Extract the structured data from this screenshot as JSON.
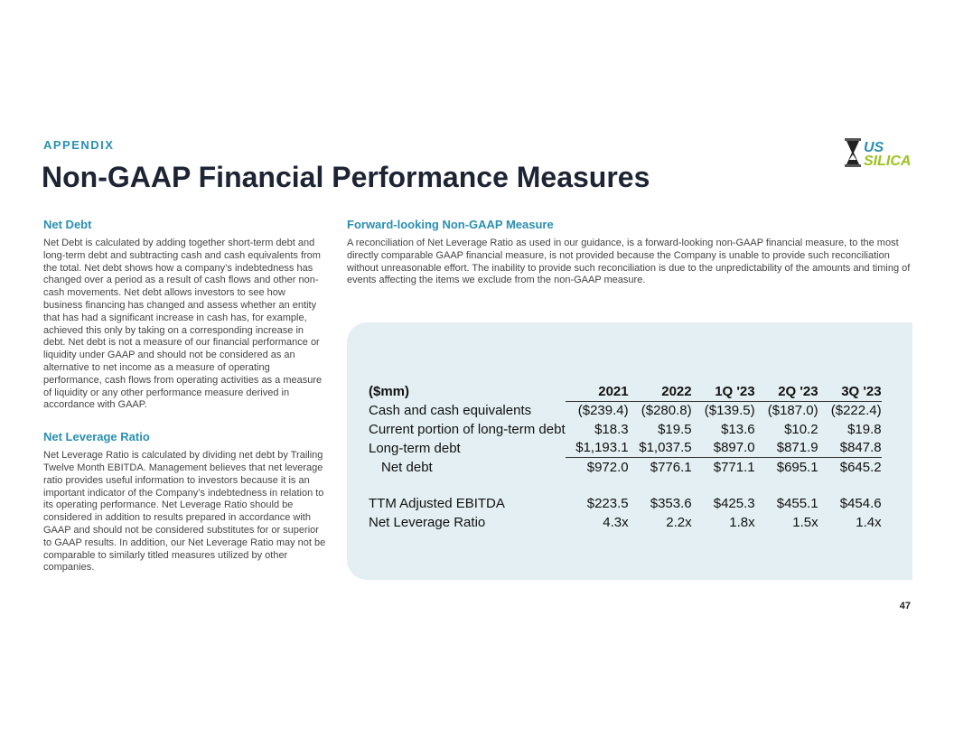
{
  "eyebrow": "APPENDIX",
  "title": "Non-GAAP Financial Performance Measures",
  "logo": {
    "text_line1": "US",
    "text_line2": "SILICA",
    "colors": {
      "blue": "#2a8fb2",
      "green": "#9cc31c"
    }
  },
  "net_debt": {
    "heading": "Net Debt",
    "body": "Net Debt is calculated by adding together short-term debt and long-term debt and subtracting cash and cash equivalents from the total. Net debt shows how a company’s indebtedness has changed over a period as a result of cash flows and other non-cash movements. Net debt allows investors to see how business financing has changed and assess whether an entity that has had a significant increase in cash has, for example, achieved this only by taking on a corresponding increase in debt.  Net debt is not a measure of our financial performance or liquidity under GAAP and should not be considered as an alternative to net income as a measure of operating performance, cash flows from operating activities as a measure of liquidity or any other performance measure derived in accordance with GAAP."
  },
  "net_leverage": {
    "heading": "Net Leverage Ratio",
    "body": "Net Leverage Ratio is calculated by dividing net debt by Trailing Twelve Month EBITDA. Management believes that net leverage ratio provides useful information to investors because it is an important indicator of the Company’s indebtedness in relation to its operating performance. Net Leverage Ratio should be considered in addition to results prepared in accordance with GAAP and should not be considered substitutes for or superior to GAAP results. In addition, our Net Leverage Ratio may not be comparable to similarly titled measures utilized by other companies."
  },
  "forward": {
    "heading": "Forward-looking Non-GAAP Measure",
    "body": "A reconciliation of Net Leverage Ratio as used in our guidance, is a forward-looking non-GAAP financial measure, to the most directly comparable GAAP financial measure, is not provided because the Company is unable to provide such reconciliation without unreasonable effort. The inability to provide such reconciliation is due to the unpredictability of the amounts and timing of events affecting the items we exclude from the non-GAAP measure."
  },
  "table": {
    "unit": "($mm)",
    "columns": [
      "2021",
      "2022",
      "1Q '23",
      "2Q '23",
      "3Q '23"
    ],
    "rows": [
      {
        "label": "Cash and cash equivalents",
        "values": [
          "($239.4)",
          "($280.8)",
          "($139.5)",
          "($187.0)",
          "($222.4)"
        ]
      },
      {
        "label": "Current portion of long-term debt",
        "values": [
          "$18.3",
          "$19.5",
          "$13.6",
          "$10.2",
          "$19.8"
        ]
      },
      {
        "label": "Long-term debt",
        "values": [
          "$1,193.1",
          "$1,037.5",
          "$897.0",
          "$871.9",
          "$847.8"
        ]
      },
      {
        "label": "Net debt",
        "values": [
          "$972.0",
          "$776.1",
          "$771.1",
          "$695.1",
          "$645.2"
        ]
      },
      {
        "label": "TTM Adjusted EBITDA",
        "values": [
          "$223.5",
          "$353.6",
          "$425.3",
          "$455.1",
          "$454.6"
        ]
      },
      {
        "label": "Net Leverage Ratio",
        "values": [
          "4.3x",
          "2.2x",
          "1.8x",
          "1.5x",
          "1.4x"
        ]
      }
    ]
  },
  "page_number": "47"
}
